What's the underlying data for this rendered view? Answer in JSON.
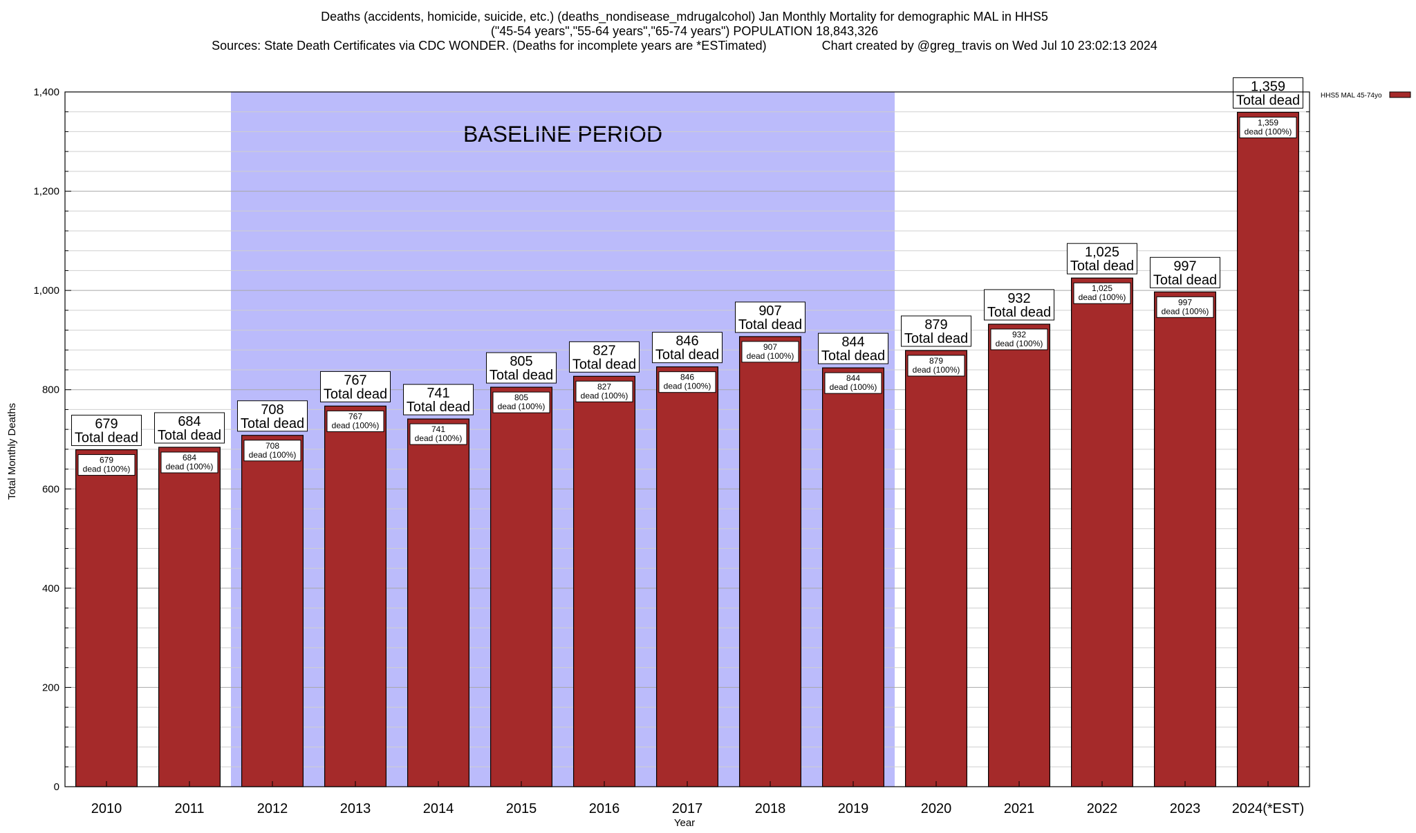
{
  "chart_data": {
    "type": "bar",
    "title_lines": [
      "Deaths (accidents, homicide, suicide, etc.) (deaths_nondisease_mdrugalcohol) Jan Monthly Mortality for demographic MAL in HHS5",
      "(\"45-54 years\",\"55-64 years\",\"65-74 years\") POPULATION 18,843,326",
      "Sources: State Death Certificates via CDC WONDER. (Deaths for incomplete years are *ESTimated)                Chart created by @greg_travis on Wed Jul 10 23:02:13 2024"
    ],
    "xlabel": "Year",
    "ylabel": "Total Monthly Deaths",
    "ylim": [
      0,
      1400
    ],
    "yticks": [
      0,
      200,
      400,
      600,
      800,
      1000,
      1200,
      1400
    ],
    "ytick_labels": [
      "0",
      "200",
      "400",
      "600",
      "800",
      "1,000",
      "1,200",
      "1,400"
    ],
    "minor_tick_step": 40,
    "grid": true,
    "categories": [
      "2010",
      "2011",
      "2012",
      "2013",
      "2014",
      "2015",
      "2016",
      "2017",
      "2018",
      "2019",
      "2020",
      "2021",
      "2022",
      "2023",
      "2024(*EST)"
    ],
    "series": [
      {
        "name": "HHS5 MAL 45-74yo",
        "color": "#a52a2a",
        "values": [
          679,
          684,
          708,
          767,
          741,
          805,
          827,
          846,
          907,
          844,
          879,
          932,
          1025,
          997,
          1359
        ]
      }
    ],
    "value_labels": [
      "679",
      "684",
      "708",
      "767",
      "741",
      "805",
      "827",
      "846",
      "907",
      "844",
      "879",
      "932",
      "1,025",
      "997",
      "1,359"
    ],
    "total_label_suffix": "Total dead",
    "inner_label_suffix": "dead (100%)",
    "baseline": {
      "label": "BASELINE PERIOD",
      "start_category": "2012",
      "end_category": "2019",
      "color": "#bbbbfb"
    },
    "legend": {
      "label": "HHS5 MAL 45-74yo",
      "placement": "outside-top-right"
    }
  }
}
